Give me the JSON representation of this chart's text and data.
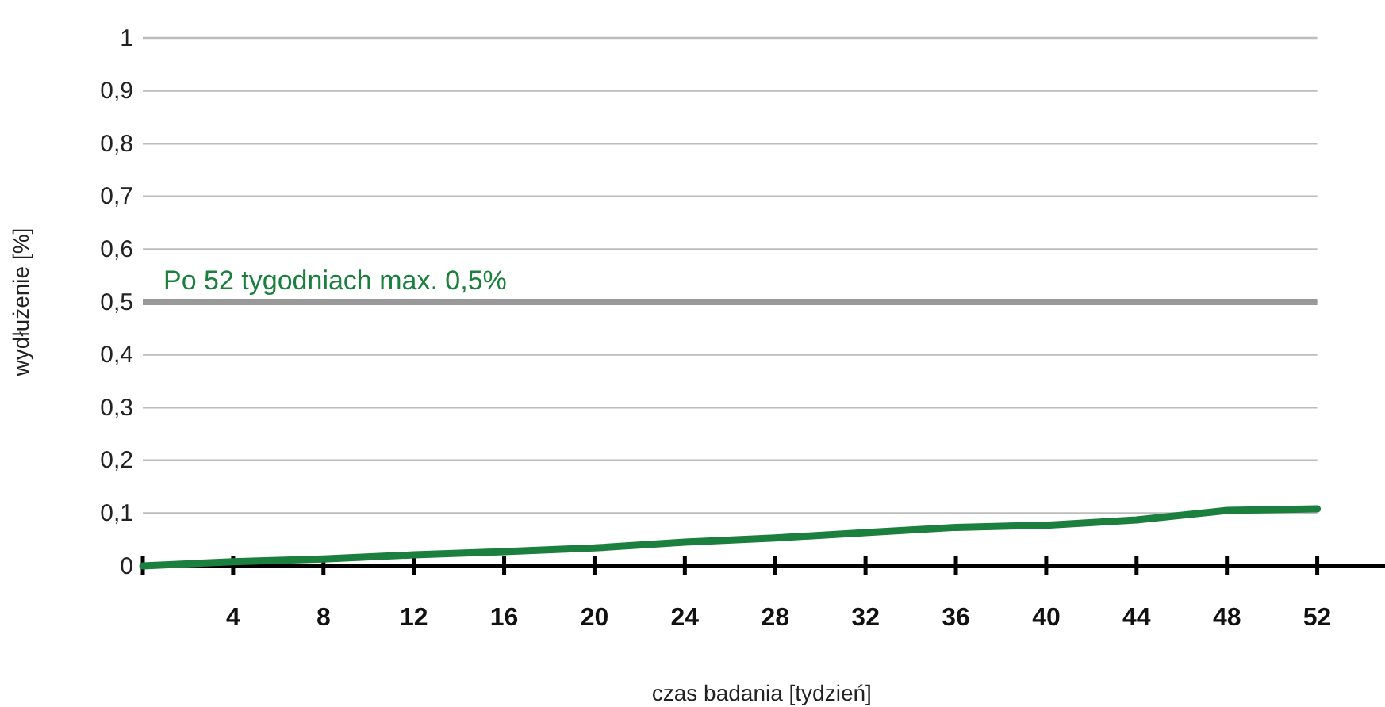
{
  "chart_data": {
    "type": "line",
    "xlabel": "czas badania [tydzień]",
    "ylabel": "wydłużenie [%]",
    "x": [
      0,
      4,
      8,
      12,
      16,
      20,
      24,
      28,
      32,
      36,
      40,
      44,
      48,
      52
    ],
    "series": [
      {
        "color": "#1b7f3e",
        "values": [
          0,
          0.008,
          0.013,
          0.021,
          0.027,
          0.034,
          0.045,
          0.053,
          0.063,
          0.073,
          0.077,
          0.087,
          0.105,
          0.108
        ]
      }
    ],
    "xlim": [
      0,
      55
    ],
    "xticks": [
      {
        "value": 0,
        "label": null
      },
      4,
      8,
      12,
      16,
      20,
      24,
      28,
      32,
      36,
      40,
      44,
      48,
      52
    ],
    "ylim": [
      0,
      1
    ],
    "yticks": [
      0,
      {
        "value": 0.1,
        "label": "0,1"
      },
      {
        "value": 0.2,
        "label": "0,2"
      },
      {
        "value": 0.3,
        "label": "0,3"
      },
      {
        "value": 0.4,
        "label": "0,4"
      },
      {
        "value": 0.5,
        "label": "0,5"
      },
      {
        "value": 0.6,
        "label": "0,6"
      },
      {
        "value": 0.7,
        "label": "0,7"
      },
      {
        "value": 0.8,
        "label": "0,8"
      },
      {
        "value": 0.9,
        "label": "0,9"
      },
      1
    ],
    "ref_lines": [
      {
        "axis": "y",
        "value": 0.5,
        "label": "Po 52 tygodniach max. 0,5%",
        "color": "#999999"
      }
    ],
    "grid": "y",
    "marker": "none",
    "line_style": "solid"
  }
}
